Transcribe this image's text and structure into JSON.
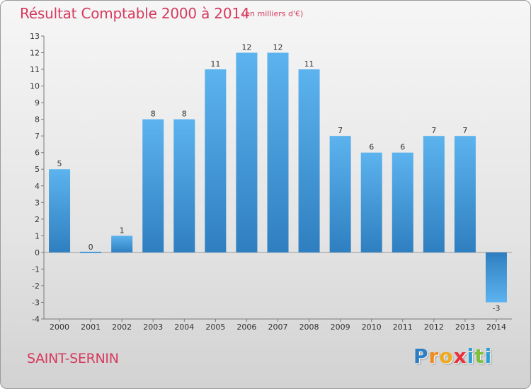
{
  "chart_data": {
    "type": "bar",
    "title": "Résultat Comptable 2000 à 2014",
    "subtitle": "(en milliers d'€)",
    "categories": [
      "2000",
      "2001",
      "2002",
      "2003",
      "2004",
      "2005",
      "2006",
      "2007",
      "2008",
      "2009",
      "2010",
      "2011",
      "2012",
      "2013",
      "2014"
    ],
    "values": [
      5,
      0,
      1,
      8,
      8,
      11,
      12,
      12,
      11,
      7,
      6,
      6,
      7,
      7,
      -3
    ],
    "data_labels": [
      "5",
      "0",
      "1",
      "8",
      "8",
      "11",
      "12",
      "12",
      "11",
      "7",
      "6",
      "6",
      "7",
      "7",
      "-3"
    ],
    "y_ticks": [
      13,
      12,
      11,
      10,
      9,
      8,
      7,
      6,
      5,
      4,
      3,
      2,
      1,
      0,
      -1,
      -2,
      -3,
      -4
    ],
    "y_tick_labels": [
      "13",
      "12",
      "11",
      "10",
      "9",
      "8",
      "7",
      "6",
      "5",
      "4",
      "3",
      "2",
      "1",
      "0",
      "-1",
      "-2",
      "-3",
      "-4"
    ],
    "ylim": [
      -4,
      13
    ],
    "xlabel": "",
    "ylabel": "",
    "grid": false,
    "bar_color": "#4a9fd8"
  },
  "footer": {
    "place_name": "SAINT-SERNIN",
    "logo_letters": [
      {
        "char": "P",
        "color": "#2a7fc4"
      },
      {
        "char": "r",
        "color": "#f08a1c"
      },
      {
        "char": "o",
        "color": "#f0a81c"
      },
      {
        "char": "x",
        "color": "#e8303a"
      },
      {
        "char": "i",
        "color": "#2a9fd6"
      },
      {
        "char": "t",
        "color": "#7bbf3a"
      },
      {
        "char": "i",
        "color": "#2a9fd6"
      }
    ]
  },
  "colors": {
    "accent": "#d63a5e"
  }
}
